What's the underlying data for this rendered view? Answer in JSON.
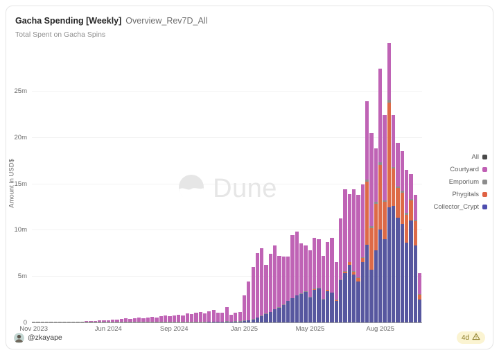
{
  "header": {
    "title": "Gacha Spending [Weekly]",
    "context": "Overview_Rev7D_All",
    "subtitle": "Total Spent on Gacha Spins"
  },
  "watermark": {
    "brand": "Dune"
  },
  "footer": {
    "author": "@zkayape",
    "staleness": "4d"
  },
  "legend": {
    "items": [
      {
        "label": "All",
        "color": "#4a4a4a"
      },
      {
        "label": "Courtyard",
        "color": "#c05fb4"
      },
      {
        "label": "Emporium",
        "color": "#8c8c8c"
      },
      {
        "label": "Phygitals",
        "color": "#df6244"
      },
      {
        "label": "Collector_Crypt",
        "color": "#4d4daf"
      }
    ]
  },
  "chart_data": {
    "type": "bar",
    "stacked": true,
    "title": "Gacha Spending [Weekly]",
    "subtitle": "Total Spent on Gacha Spins",
    "ylabel": "Amount in USD$",
    "unit": "millions of USD",
    "ylim": [
      0,
      30.6
    ],
    "grid": "horizontal",
    "legend_position": "right",
    "bar_count": 89,
    "y_ticks": [
      {
        "value": 0,
        "label": "0"
      },
      {
        "value": 5,
        "label": "5m"
      },
      {
        "value": 10,
        "label": "10m"
      },
      {
        "value": 15,
        "label": "15m"
      },
      {
        "value": 20,
        "label": "20m"
      },
      {
        "value": 25,
        "label": "25m"
      }
    ],
    "x_ticks": [
      {
        "index": 0,
        "label": "Nov 2023"
      },
      {
        "index": 17,
        "label": "Jun 2024"
      },
      {
        "index": 32,
        "label": "Sep 2024"
      },
      {
        "index": 48,
        "label": "Jan 2025"
      },
      {
        "index": 63,
        "label": "May 2025"
      },
      {
        "index": 79,
        "label": "Aug 2025"
      }
    ],
    "stack_order_bottom_to_top": [
      "Collector_Crypt",
      "Phygitals",
      "Emporium",
      "Courtyard"
    ],
    "series": [
      {
        "name": "Collector_Crypt",
        "color": "#57579f",
        "values": [
          0,
          0,
          0,
          0,
          0,
          0,
          0,
          0,
          0,
          0,
          0,
          0,
          0,
          0,
          0,
          0,
          0,
          0,
          0,
          0,
          0,
          0,
          0,
          0,
          0,
          0,
          0,
          0,
          0,
          0,
          0,
          0,
          0,
          0,
          0,
          0,
          0,
          0,
          0,
          0,
          0.05,
          0.05,
          0.05,
          0.05,
          0.08,
          0.05,
          0.08,
          0.1,
          0.15,
          0.2,
          0.3,
          0.5,
          0.7,
          0.9,
          1.1,
          1.4,
          1.6,
          1.9,
          2.3,
          2.6,
          2.9,
          3.1,
          3.3,
          2.7,
          3.5,
          3.7,
          2.5,
          3.4,
          3.2,
          2.3,
          4.6,
          5.3,
          6.2,
          5.2,
          4.4,
          6.5,
          8.4,
          5.7,
          7.8,
          10,
          9,
          12.4,
          12.6,
          11.3,
          10.6,
          8.6,
          11,
          8.3,
          2.5
        ]
      },
      {
        "name": "Phygitals",
        "color": "#dd6a47",
        "values": [
          0,
          0,
          0,
          0,
          0,
          0,
          0,
          0,
          0,
          0,
          0,
          0,
          0,
          0,
          0,
          0,
          0,
          0,
          0,
          0,
          0,
          0,
          0,
          0,
          0,
          0,
          0,
          0,
          0,
          0,
          0,
          0,
          0,
          0,
          0,
          0,
          0,
          0,
          0,
          0,
          0,
          0,
          0,
          0,
          0,
          0,
          0,
          0,
          0,
          0,
          0,
          0,
          0,
          0,
          0,
          0,
          0,
          0,
          0,
          0,
          0,
          0,
          0,
          0,
          0.1,
          0,
          0,
          0.1,
          0,
          0.1,
          0,
          0.2,
          0.3,
          0.3,
          0.4,
          0.5,
          6.8,
          4.5,
          5,
          7,
          4,
          11.3,
          4,
          3.2,
          3.4,
          3,
          2.2,
          2.6,
          0.5
        ]
      },
      {
        "name": "Emporium",
        "color": "#8c8c8c",
        "values": [
          0.04,
          0.05,
          0.04,
          0.05,
          0.06,
          0.05,
          0.06,
          0.07,
          0.06,
          0.07,
          0.08,
          0.05,
          0.05,
          0.05,
          0.05,
          0.05,
          0.05,
          0.05,
          0.05,
          0.05,
          0.05,
          0.05,
          0.05,
          0.05,
          0.05,
          0.05,
          0.05,
          0.05,
          0.05,
          0.05,
          0.05,
          0.05,
          0.05,
          0.05,
          0.05,
          0.05,
          0.05,
          0.05,
          0.05,
          0.05,
          0.05,
          0.05,
          0.05,
          0.05,
          0.05,
          0.05,
          0.05,
          0.05,
          0.05,
          0.05,
          0.05,
          0.05,
          0.05,
          0.05,
          0.05,
          0.05,
          0.05,
          0.05,
          0.05,
          0.05,
          0.05,
          0.05,
          0.05,
          0.05,
          0.05,
          0.05,
          0.05,
          0.05,
          0.05,
          0.05,
          0.05,
          0.05,
          0.05,
          0.05,
          0.05,
          0.05,
          0.25,
          0.2,
          0.2,
          0.3,
          0.2,
          0.3,
          0.2,
          0.2,
          0.2,
          0.2,
          0.15,
          0.15,
          0.1
        ]
      },
      {
        "name": "Courtyard",
        "color": "#bf63b5",
        "values": [
          0,
          0,
          0,
          0,
          0,
          0,
          0,
          0,
          0,
          0,
          0,
          0.06,
          0.09,
          0.11,
          0.1,
          0.14,
          0.17,
          0.21,
          0.27,
          0.23,
          0.31,
          0.37,
          0.31,
          0.41,
          0.47,
          0.41,
          0.51,
          0.57,
          0.51,
          0.61,
          0.67,
          0.61,
          0.71,
          0.81,
          0.73,
          0.93,
          0.84,
          1,
          1.1,
          0.94,
          1.12,
          1.26,
          0.98,
          0.92,
          1.52,
          0.73,
          0.94,
          0.98,
          2.7,
          4.15,
          5.65,
          6.95,
          7.25,
          5.25,
          6.25,
          6.85,
          5.55,
          5.2,
          4.75,
          6.75,
          6.85,
          5.35,
          4.95,
          5.05,
          5.45,
          5.25,
          4.65,
          5.15,
          5.85,
          4.05,
          6.55,
          8.85,
          7.3,
          8.85,
          8.95,
          7.85,
          8.45,
          10,
          5.8,
          10.1,
          9.2,
          6.2,
          5.6,
          4.7,
          4.3,
          4.7,
          2.65,
          2.75,
          2.2
        ]
      }
    ]
  }
}
